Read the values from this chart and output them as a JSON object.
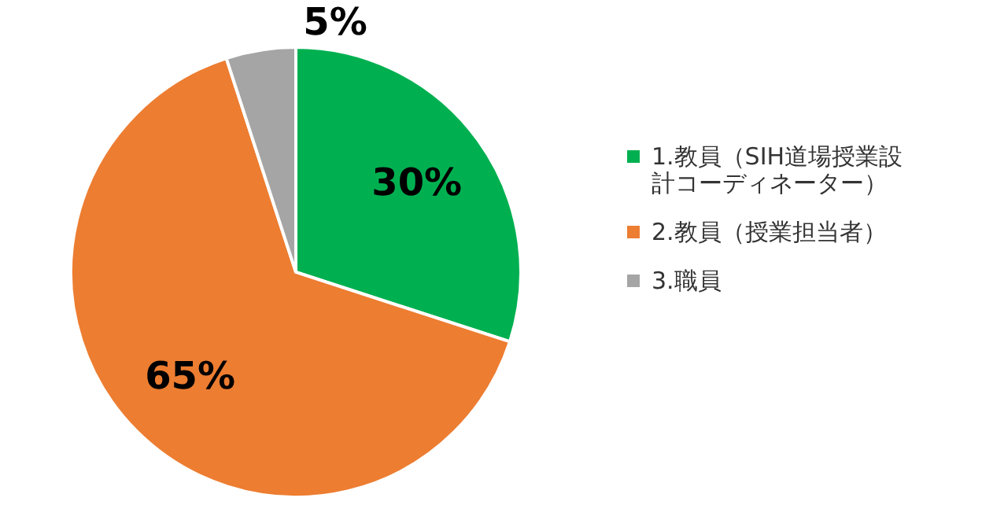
{
  "chart_data": {
    "type": "pie",
    "categories": [
      "1.教員（SIH道場授業設計コーディネーター）",
      "2.教員（授業担当者）",
      "3.職員"
    ],
    "values": [
      30,
      65,
      5
    ],
    "colors": [
      "#00b050",
      "#ed7d31",
      "#a5a5a5"
    ],
    "value_labels": [
      "30%",
      "65%",
      "5%"
    ],
    "legend": "right"
  }
}
